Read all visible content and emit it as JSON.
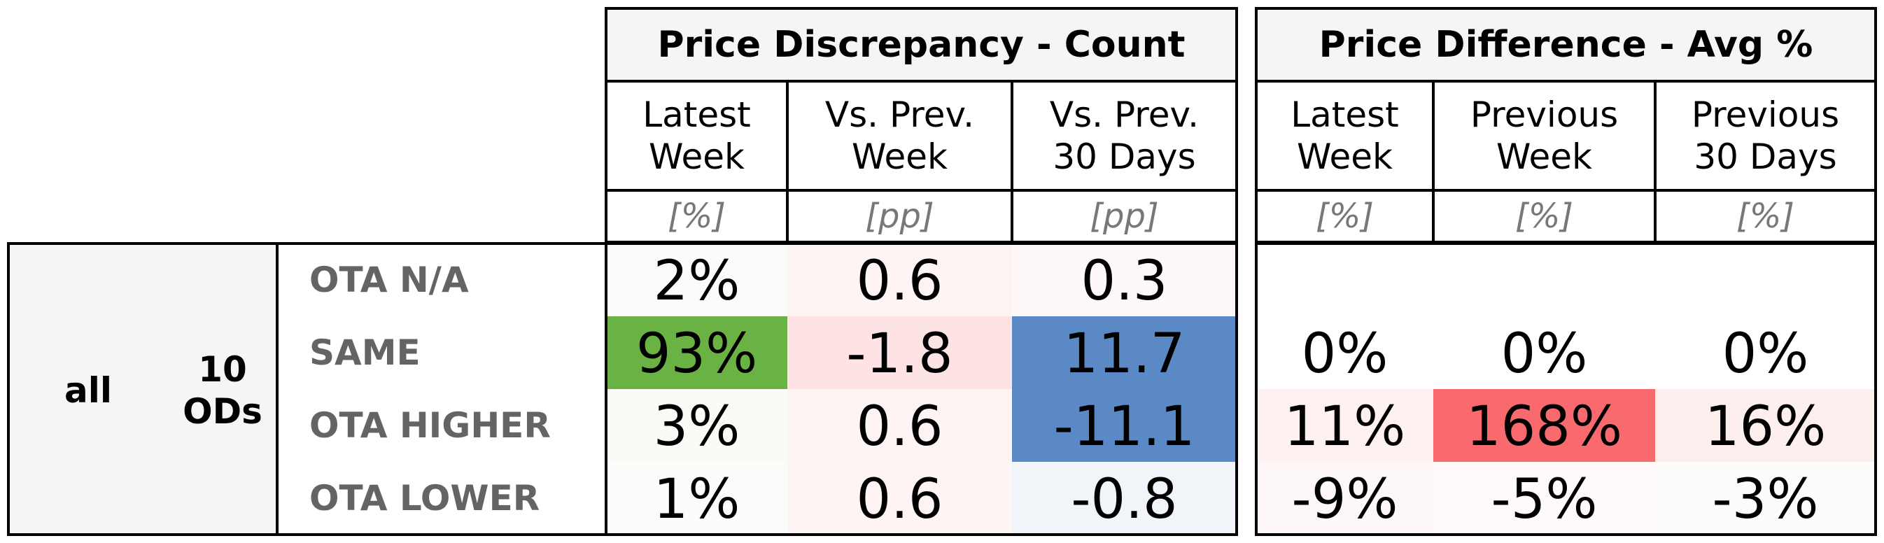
{
  "chart_data": {
    "type": "table",
    "row_group": {
      "label": "all",
      "sublabel": "10\nODs"
    },
    "rows": [
      "OTA N/A",
      "SAME",
      "OTA HIGHER",
      "OTA LOWER"
    ],
    "tables": [
      {
        "title": "Price Discrepancy - Count",
        "columns": [
          {
            "header": "Latest\nWeek",
            "unit": "[%]"
          },
          {
            "header": "Vs. Prev.\nWeek",
            "unit": "[pp]"
          },
          {
            "header": "Vs. Prev.\n30 Days",
            "unit": "[pp]"
          }
        ],
        "cells": [
          [
            "2%",
            "0.6",
            "0.3"
          ],
          [
            "93%",
            "-1.8",
            "11.7"
          ],
          [
            "3%",
            "0.6",
            "-11.1"
          ],
          [
            "1%",
            "0.6",
            "-0.8"
          ]
        ],
        "values": [
          [
            2,
            0.6,
            0.3
          ],
          [
            93,
            -1.8,
            11.7
          ],
          [
            3,
            0.6,
            -11.1
          ],
          [
            1,
            0.6,
            -0.8
          ]
        ]
      },
      {
        "title": "Price Difference - Avg %",
        "columns": [
          {
            "header": "Latest\nWeek",
            "unit": "[%]"
          },
          {
            "header": "Previous\nWeek",
            "unit": "[%]"
          },
          {
            "header": "Previous\n30 Days",
            "unit": "[%]"
          }
        ],
        "cells": [
          [
            "",
            "",
            ""
          ],
          [
            "0%",
            "0%",
            "0%"
          ],
          [
            "11%",
            "168%",
            "16%"
          ],
          [
            "-9%",
            "-5%",
            "-3%"
          ]
        ],
        "values": [
          [
            null,
            null,
            null
          ],
          [
            0,
            0,
            0
          ],
          [
            11,
            168,
            16
          ],
          [
            -9,
            -5,
            -3
          ]
        ]
      }
    ],
    "cell_colors": {
      "t0": [
        [
          "#f9fcf8",
          "#fef4f4",
          "#fef8f8"
        ],
        [
          "#6bb245",
          "#fde3e4",
          "#5b89c5"
        ],
        [
          "#f8fbf6",
          "#fef4f4",
          "#5b89c5"
        ],
        [
          "#fbfdfb",
          "#fef4f4",
          "#f1f5fa"
        ]
      ],
      "t1": [
        [
          "#ffffff",
          "#ffffff",
          "#ffffff"
        ],
        [
          "#ffffff",
          "#ffffff",
          "#ffffff"
        ],
        [
          "#fef1f1",
          "#f86a6d",
          "#feefef"
        ],
        [
          "#fef7f7",
          "#fefafa",
          "#fefbfb"
        ]
      ]
    },
    "colors": {
      "header_bg": "#f5f5f5",
      "border": "#000000",
      "row_label": "#646464",
      "unit": "#787878"
    }
  }
}
